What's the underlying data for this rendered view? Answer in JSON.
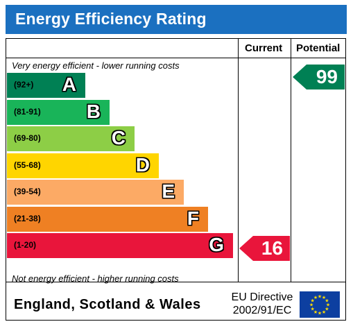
{
  "header": {
    "title": "Energy Efficiency Rating"
  },
  "columns": {
    "current": "Current",
    "potential": "Potential"
  },
  "notes": {
    "top": "Very energy efficient - lower running costs",
    "bottom": "Not energy efficient - higher running costs"
  },
  "bands": [
    {
      "range": "(92+)",
      "letter": "A",
      "color": "#008054"
    },
    {
      "range": "(81-91)",
      "letter": "B",
      "color": "#19b459"
    },
    {
      "range": "(69-80)",
      "letter": "C",
      "color": "#8dce46"
    },
    {
      "range": "(55-68)",
      "letter": "D",
      "color": "#ffd500"
    },
    {
      "range": "(39-54)",
      "letter": "E",
      "color": "#fcaa65"
    },
    {
      "range": "(21-38)",
      "letter": "F",
      "color": "#ef8023"
    },
    {
      "range": "(1-20)",
      "letter": "G",
      "color": "#e9153b"
    }
  ],
  "current_rating": {
    "value": "16",
    "band": "G",
    "color": "#e9153b"
  },
  "potential_rating": {
    "value": "99",
    "band": "A",
    "color": "#008054"
  },
  "footer": {
    "region": "England, Scotland & Wales",
    "directive_line1": "EU Directive",
    "directive_line2": "2002/91/EC",
    "flag_icon": "eu-flag-icon"
  }
}
